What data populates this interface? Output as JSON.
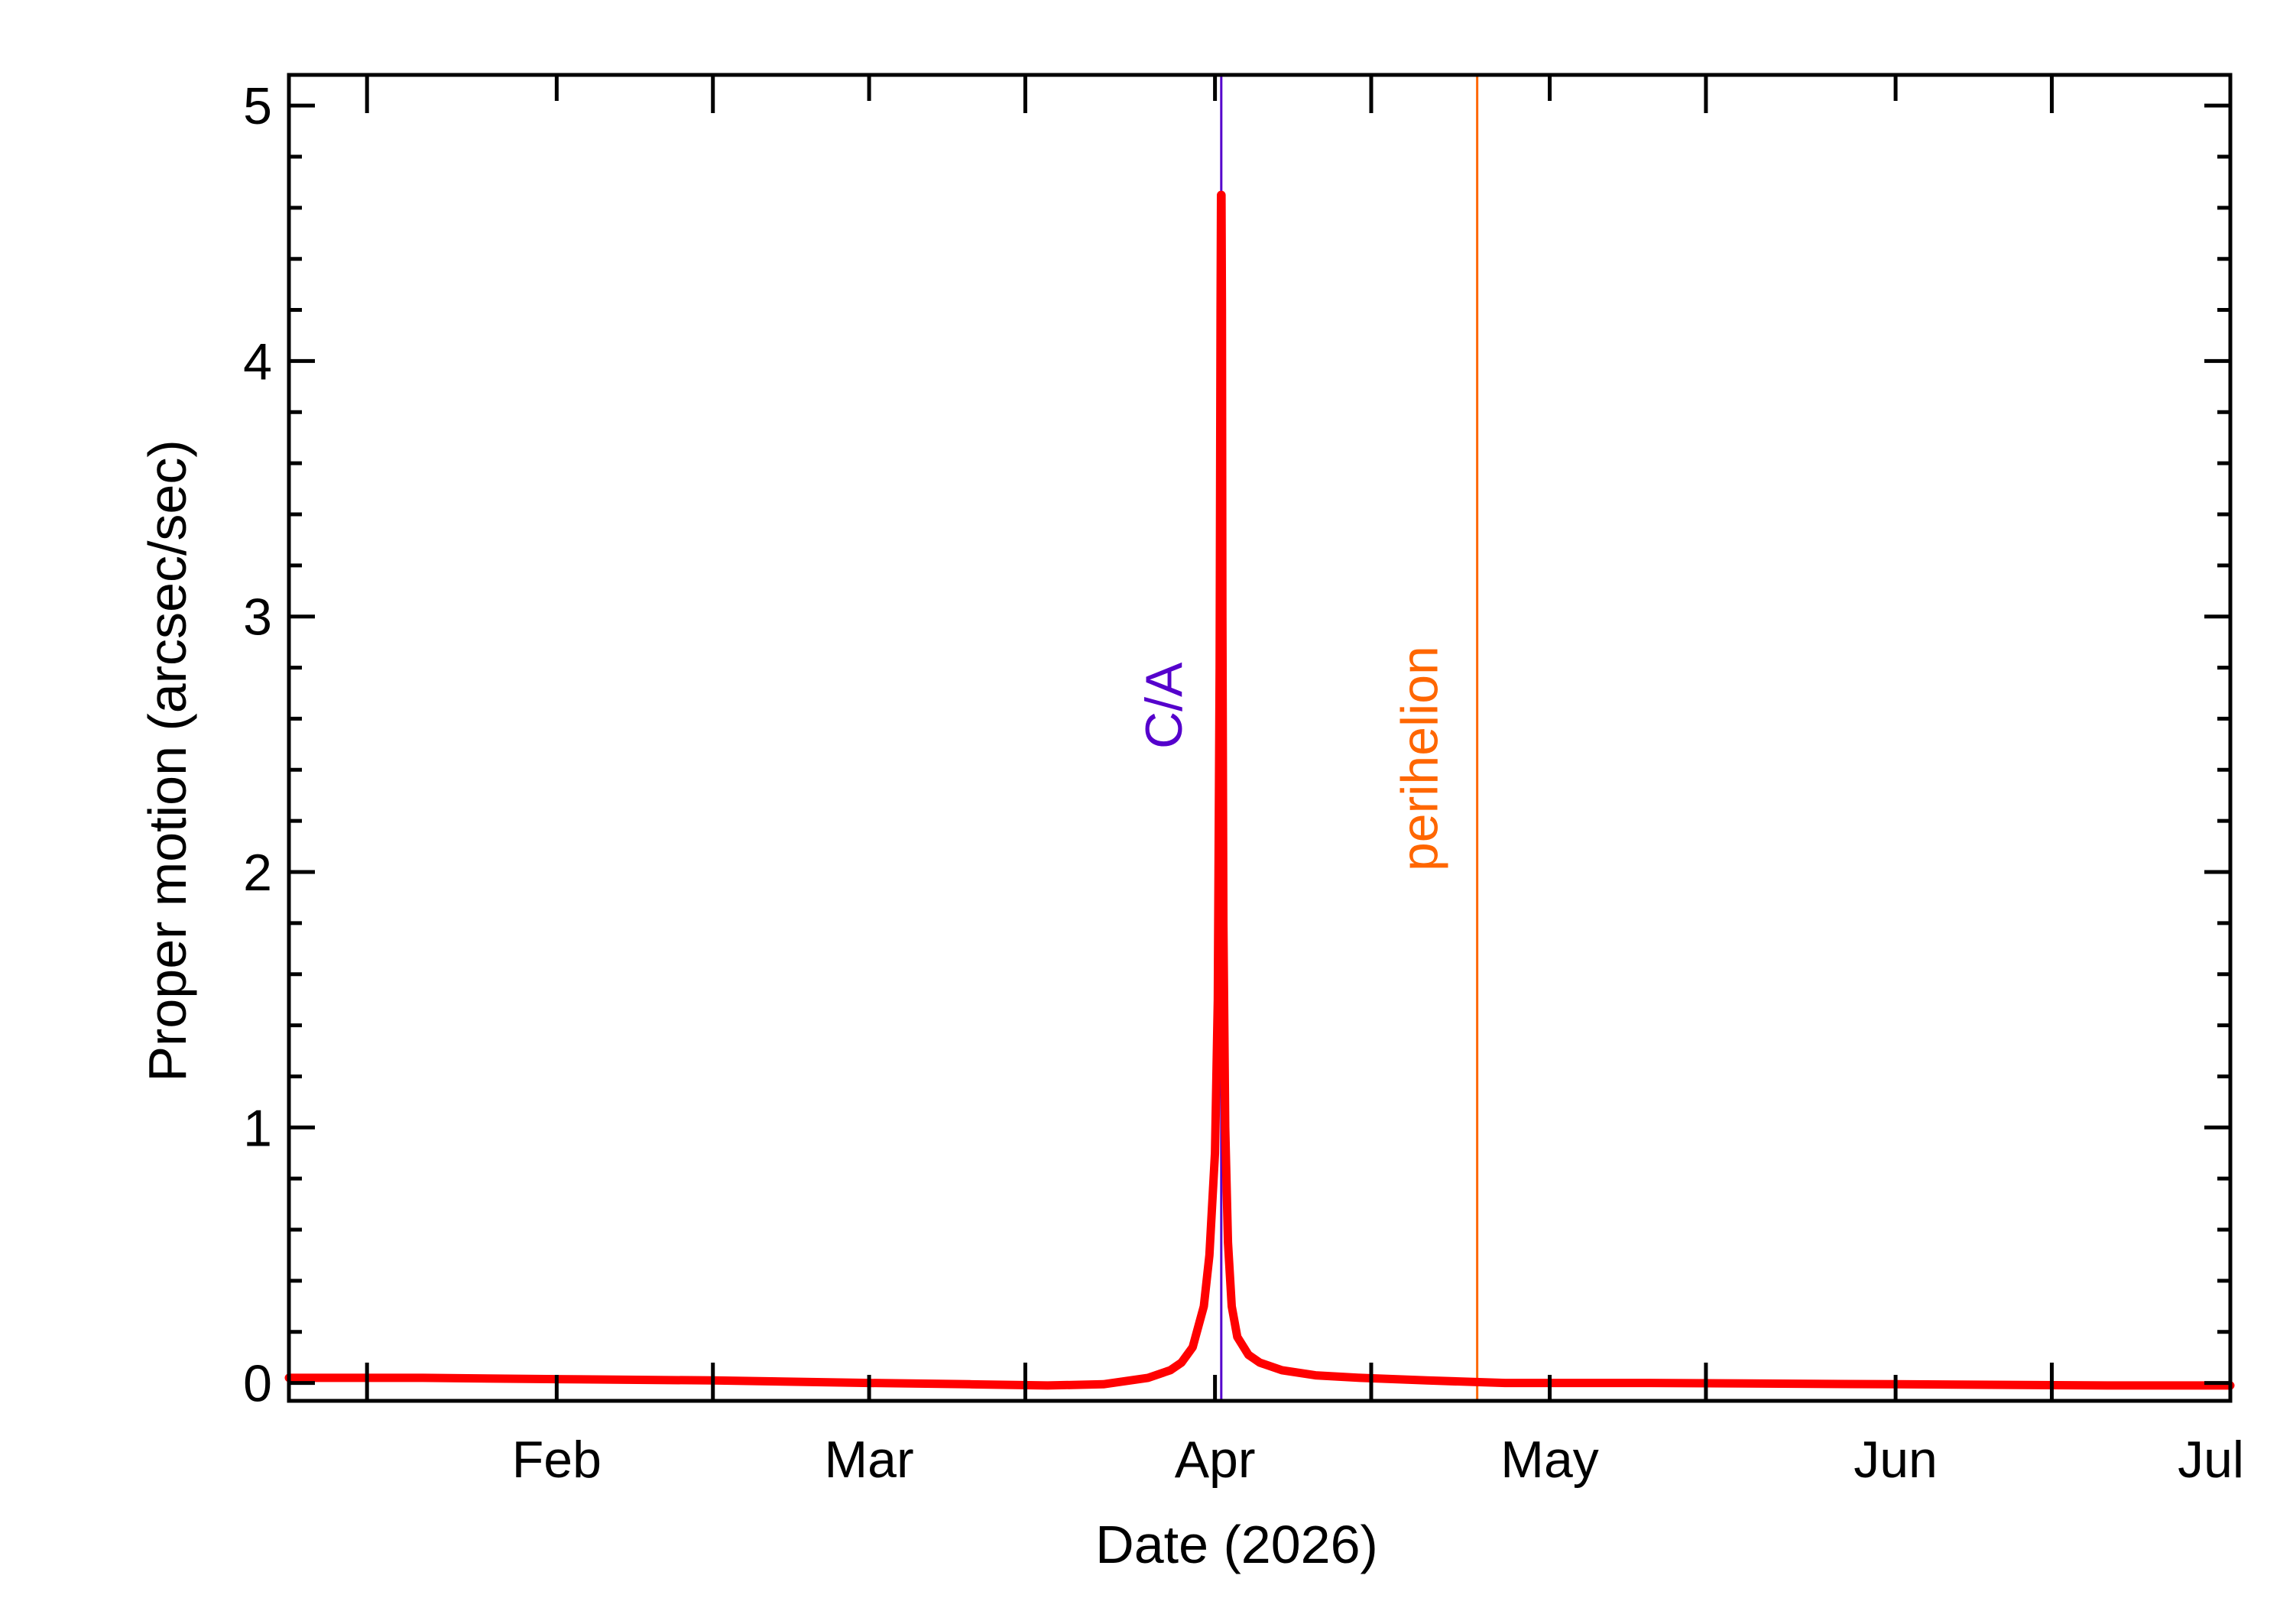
{
  "chart_data": {
    "type": "line",
    "xlabel": "Date (2026)",
    "ylabel": "Proper motion (arcsec/sec)",
    "x_range": [
      "2026-01-08",
      "2026-07-01"
    ],
    "ylim": [
      -0.07,
      5.12
    ],
    "x_ticks": [
      {
        "label": "Feb",
        "date": "2026-02-01"
      },
      {
        "label": "Mar",
        "date": "2026-03-01"
      },
      {
        "label": "Apr",
        "date": "2026-04-01"
      },
      {
        "label": "May",
        "date": "2026-05-01"
      },
      {
        "label": "Jun",
        "date": "2026-06-01"
      },
      {
        "label": "Jul",
        "date": "2026-07-01"
      }
    ],
    "y_ticks": [
      0,
      1,
      2,
      3,
      4,
      5
    ],
    "y_minor_step": 0.2,
    "grid": false,
    "series": [
      {
        "color": "#ff0000",
        "x": [
          "2026-01-08",
          "2026-01-20",
          "2026-02-01",
          "2026-02-15",
          "2026-03-01",
          "2026-03-10",
          "2026-03-17",
          "2026-03-22",
          "2026-03-26",
          "2026-03-28",
          "2026-03-29",
          "2026-03-30",
          "2026-03-31",
          "2026-03-31T12:00",
          "2026-04-01",
          "2026-04-01T06:00",
          "2026-04-01T10:00",
          "2026-04-01T12:00",
          "2026-04-01T13:00",
          "2026-04-01T14:00",
          "2026-04-01T15:00",
          "2026-04-01T16:00",
          "2026-04-01T18:00",
          "2026-04-01T22:00",
          "2026-04-02T04:00",
          "2026-04-02T12:00",
          "2026-04-03",
          "2026-04-04",
          "2026-04-05",
          "2026-04-07",
          "2026-04-10",
          "2026-04-14",
          "2026-04-20",
          "2026-04-27",
          "2026-05-10",
          "2026-06-01",
          "2026-06-20",
          "2026-07-01"
        ],
        "y": [
          0.02,
          0.02,
          0.015,
          0.01,
          0.0,
          -0.005,
          -0.01,
          -0.005,
          0.02,
          0.05,
          0.08,
          0.14,
          0.3,
          0.5,
          0.9,
          1.5,
          2.8,
          4.2,
          4.65,
          4.65,
          4.2,
          3.0,
          1.8,
          1.0,
          0.55,
          0.3,
          0.18,
          0.11,
          0.08,
          0.05,
          0.03,
          0.02,
          0.01,
          0.0,
          0.0,
          -0.005,
          -0.01,
          -0.01
        ]
      }
    ],
    "markers": [
      {
        "label": "C/A",
        "date": "2026-04-01T13:30",
        "color": "#5500cc"
      },
      {
        "label": "perihelion",
        "date": "2026-04-24T12:00",
        "color": "#ff6600"
      }
    ]
  }
}
